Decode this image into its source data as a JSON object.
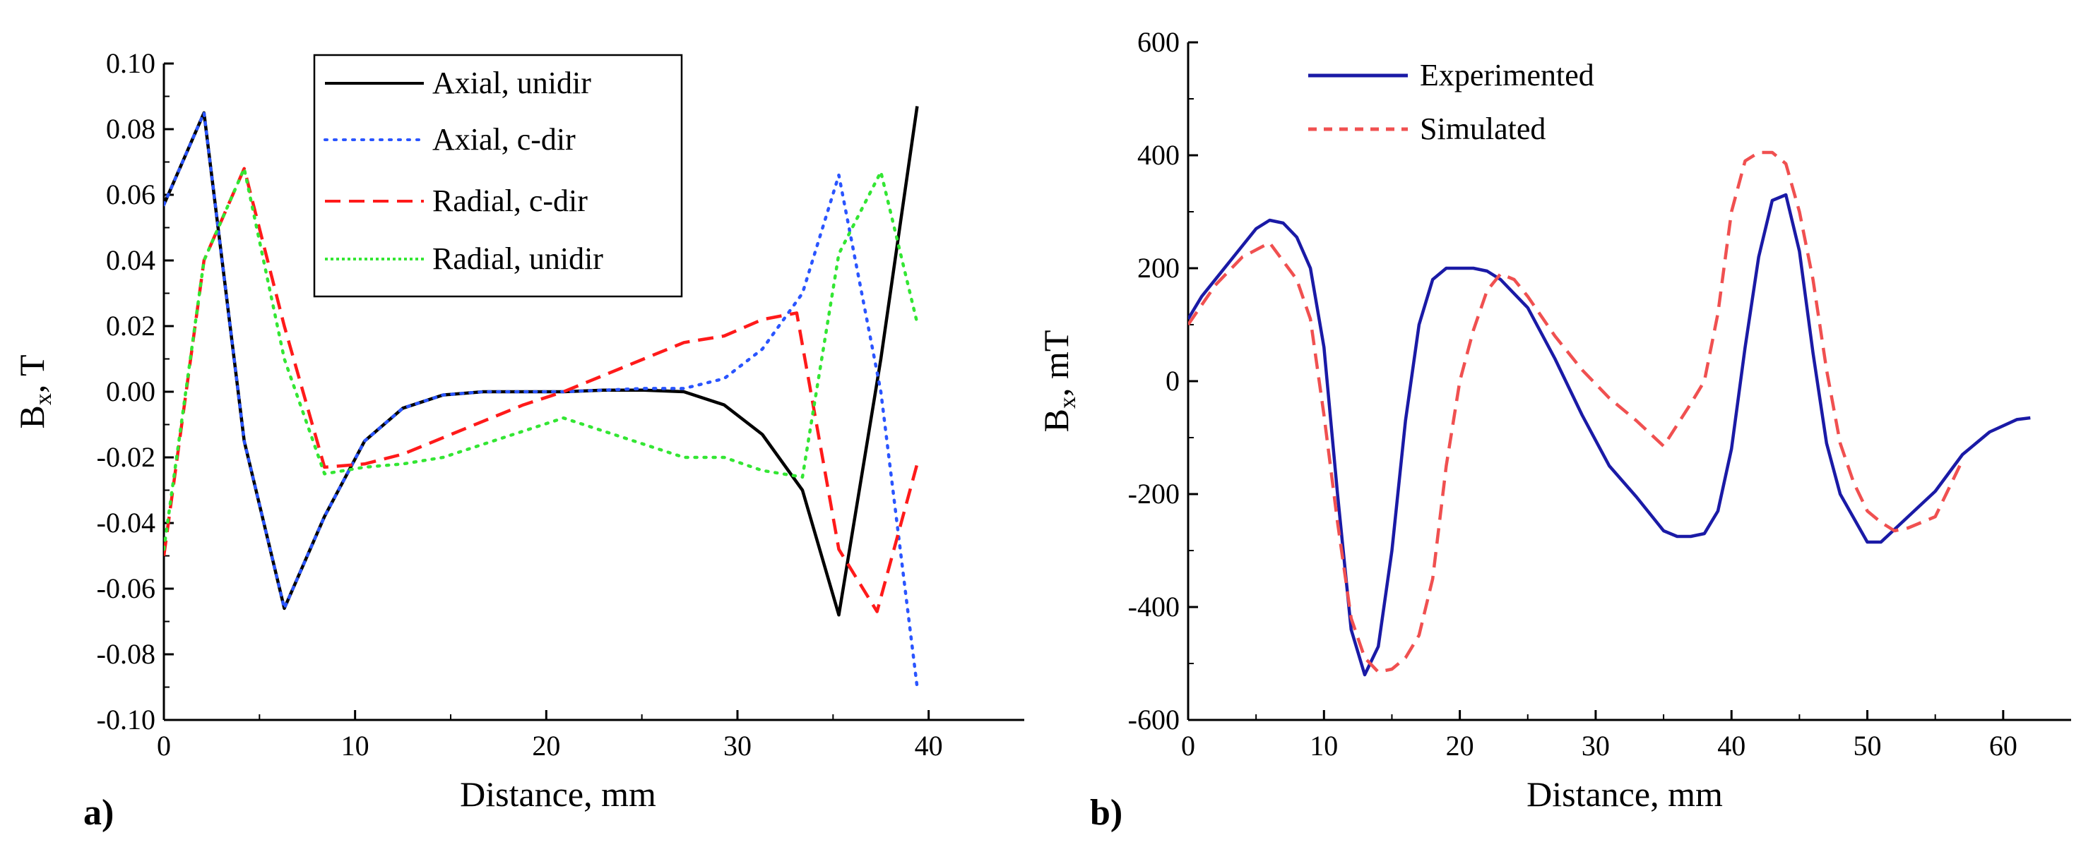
{
  "chart_data": [
    {
      "type": "line",
      "panel_label": "a)",
      "title": "",
      "xlabel": "Distance, mm",
      "ylabel_main": "B",
      "ylabel_sub": "x",
      "ylabel_rest": ", T",
      "xlim": [
        0,
        45
      ],
      "ylim": [
        -0.1,
        0.1
      ],
      "x_ticks": [
        0,
        10,
        20,
        30,
        40
      ],
      "x_tick_labels": [
        "0",
        "10",
        "20",
        "30",
        "40"
      ],
      "y_ticks": [
        -0.1,
        -0.08,
        -0.06,
        -0.04,
        -0.02,
        0,
        0.02,
        0.04,
        0.06,
        0.08,
        0.1
      ],
      "y_tick_labels": [
        "-0.10",
        "-0.08",
        "-0.06",
        "-0.04",
        "-0.02",
        "0.00",
        "0.02",
        "0.04",
        "0.06",
        "0.08",
        "0.10"
      ],
      "legend_position": "top-center",
      "series": [
        {
          "name": "Axial, unidir",
          "color": "#000000",
          "style": "solid",
          "x": [
            0,
            2.1,
            4.2,
            6.3,
            8.4,
            10.5,
            12.5,
            14.6,
            16.7,
            18.8,
            20.9,
            23,
            25.1,
            27.2,
            29.3,
            31.3,
            33.4,
            35.3,
            37.5,
            39.4
          ],
          "y": [
            0.057,
            0.085,
            -0.015,
            -0.066,
            -0.038,
            -0.015,
            -0.005,
            -0.001,
            0,
            0,
            0,
            0.0005,
            0.0005,
            0,
            -0.004,
            -0.013,
            -0.03,
            -0.068,
            0.01,
            0.087
          ]
        },
        {
          "name": "Axial, c-dir",
          "color": "#2a55ff",
          "style": "dotted",
          "x": [
            0,
            2.1,
            4.2,
            6.3,
            8.4,
            10.5,
            12.5,
            14.6,
            16.7,
            18.8,
            20.9,
            23,
            25.1,
            27.2,
            29.3,
            31.3,
            33.4,
            35.3,
            37.5,
            39.4
          ],
          "y": [
            0.057,
            0.085,
            -0.015,
            -0.066,
            -0.038,
            -0.015,
            -0.005,
            -0.001,
            0,
            0,
            0,
            0.0005,
            0.001,
            0.001,
            0.004,
            0.013,
            0.03,
            0.066,
            0.0,
            -0.09
          ]
        },
        {
          "name": "Radial, c-dir",
          "color": "#ff1a1a",
          "style": "dashed",
          "x": [
            0,
            2.1,
            4.2,
            6.3,
            8.4,
            10.5,
            12.5,
            14.6,
            16.7,
            18.8,
            20.9,
            23,
            25.1,
            27.2,
            29.3,
            31.3,
            33.1,
            35.3,
            37.3,
            39.4
          ],
          "y": [
            -0.05,
            0.04,
            0.068,
            0.02,
            -0.023,
            -0.022,
            -0.019,
            -0.014,
            -0.009,
            -0.004,
            0,
            0.005,
            0.01,
            0.015,
            0.017,
            0.022,
            0.024,
            -0.048,
            -0.067,
            -0.022
          ]
        },
        {
          "name": "Radial, unidir",
          "color": "#33e633",
          "style": "dotted",
          "x": [
            0,
            2.1,
            4.2,
            6.3,
            8.4,
            10.5,
            12.5,
            14.6,
            16.7,
            18.8,
            20.9,
            23,
            25.1,
            27.2,
            29.3,
            31.3,
            33.4,
            35.3,
            37.5,
            39.4
          ],
          "y": [
            -0.048,
            0.04,
            0.068,
            0.01,
            -0.025,
            -0.023,
            -0.022,
            -0.02,
            -0.016,
            -0.012,
            -0.008,
            -0.012,
            -0.016,
            -0.02,
            -0.02,
            -0.024,
            -0.026,
            0.042,
            0.067,
            0.021
          ]
        }
      ]
    },
    {
      "type": "line",
      "panel_label": "b)",
      "title": "",
      "xlabel": "Distance, mm",
      "ylabel_main": "B",
      "ylabel_sub": "x",
      "ylabel_rest": ", mT",
      "xlim": [
        0,
        65
      ],
      "ylim": [
        -600,
        600
      ],
      "x_ticks": [
        0,
        10,
        20,
        30,
        40,
        50,
        60
      ],
      "x_tick_labels": [
        "0",
        "10",
        "20",
        "30",
        "40",
        "50",
        "60"
      ],
      "y_ticks": [
        -600,
        -400,
        -200,
        0,
        200,
        400,
        600
      ],
      "y_tick_labels": [
        "-600",
        "-400",
        "-200",
        "0",
        "200",
        "400",
        "600"
      ],
      "legend_position": "top-left",
      "series": [
        {
          "name": "Experimented",
          "color": "#1a1aa6",
          "style": "solid",
          "x": [
            0,
            1,
            3,
            5,
            6,
            7,
            8,
            9,
            10,
            11,
            12,
            13,
            14,
            15,
            16,
            17,
            18,
            19,
            20,
            21,
            22,
            23,
            25,
            27,
            29,
            31,
            33,
            35,
            36,
            37,
            38,
            39,
            40,
            41,
            42,
            43,
            44,
            45,
            46,
            47,
            48,
            50,
            51,
            53,
            55,
            57,
            59,
            61,
            62
          ],
          "y": [
            110,
            150,
            210,
            270,
            285,
            280,
            255,
            200,
            60,
            -200,
            -440,
            -520,
            -470,
            -300,
            -70,
            100,
            180,
            200,
            200,
            200,
            195,
            180,
            130,
            40,
            -60,
            -150,
            -205,
            -265,
            -275,
            -275,
            -270,
            -230,
            -120,
            60,
            220,
            320,
            330,
            230,
            50,
            -110,
            -200,
            -285,
            -285,
            -240,
            -195,
            -130,
            -90,
            -68,
            -65
          ]
        },
        {
          "name": "Simulated",
          "color": "#f05050",
          "style": "dashed",
          "x": [
            0,
            2,
            4,
            6,
            8,
            9,
            10,
            11,
            12,
            13,
            14,
            15,
            16,
            17,
            18,
            19,
            20,
            21,
            22,
            23,
            24,
            25,
            27,
            29,
            31,
            33,
            35,
            37,
            38,
            39,
            40,
            41,
            42,
            43,
            44,
            45,
            46,
            47,
            48,
            49,
            50,
            51,
            52,
            53,
            55,
            57
          ],
          "y": [
            100,
            170,
            220,
            245,
            180,
            110,
            -60,
            -250,
            -420,
            -490,
            -515,
            -510,
            -490,
            -450,
            -350,
            -150,
            0,
            90,
            160,
            190,
            180,
            150,
            80,
            20,
            -30,
            -70,
            -115,
            -40,
            0,
            120,
            300,
            390,
            405,
            405,
            385,
            300,
            180,
            20,
            -110,
            -180,
            -230,
            -250,
            -265,
            -260,
            -240,
            -140
          ]
        }
      ]
    }
  ]
}
